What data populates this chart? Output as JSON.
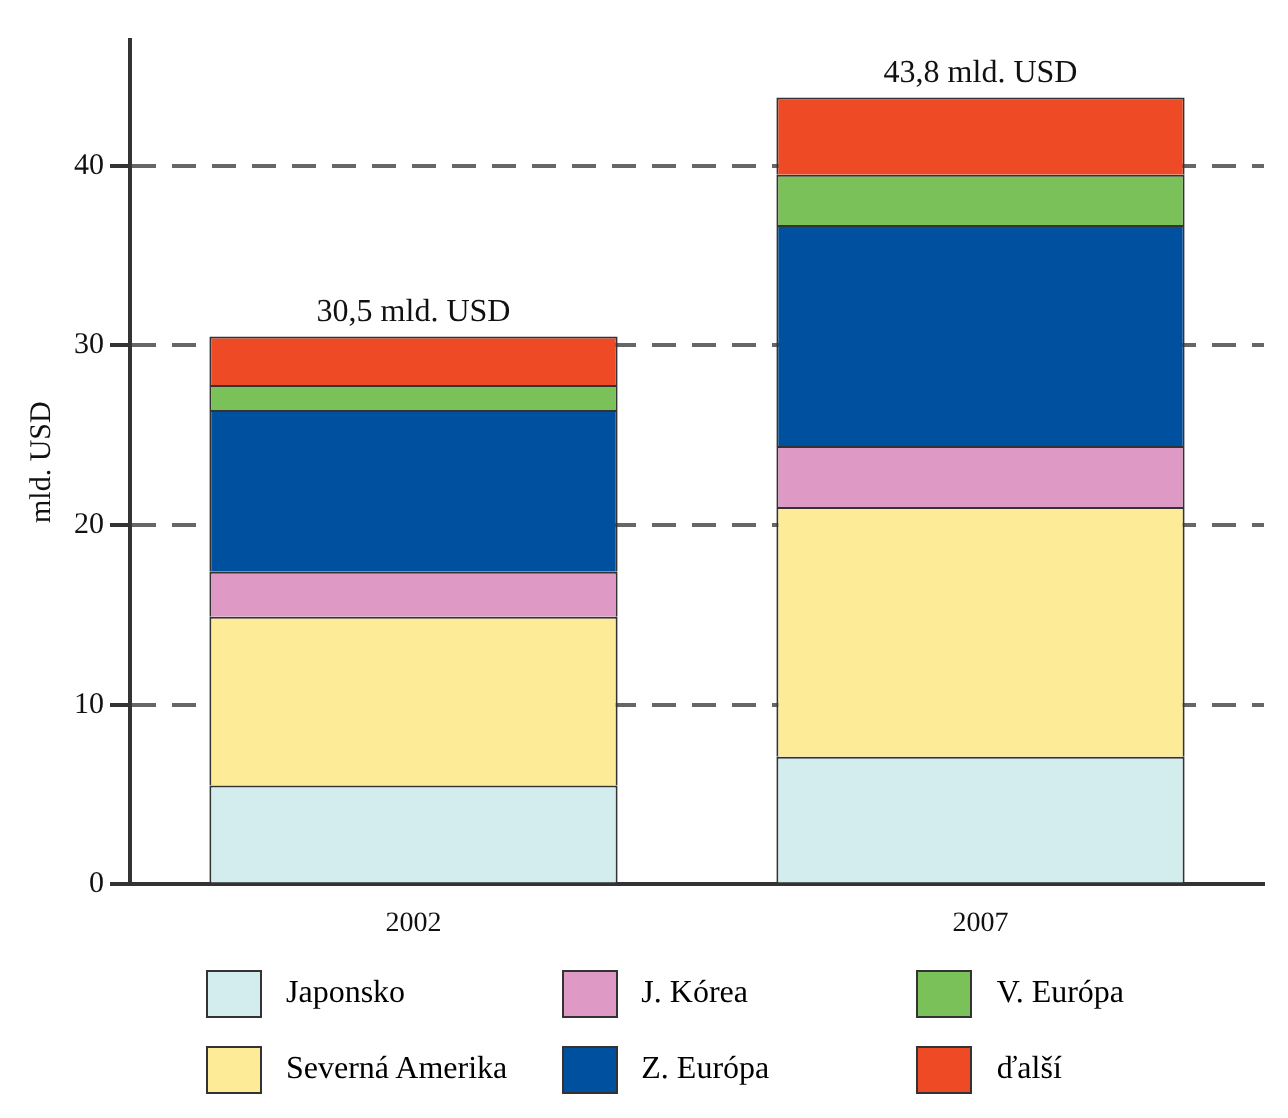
{
  "chart_data": {
    "type": "bar",
    "stacked": true,
    "ylabel": "mld. USD",
    "categories": [
      "2002",
      "2007"
    ],
    "series": [
      {
        "name": "Japonsko",
        "color": "#d3ecee",
        "values": [
          5.5,
          7.1
        ]
      },
      {
        "name": "Severná Amerika",
        "color": "#fdeb97",
        "values": [
          9.4,
          13.9
        ]
      },
      {
        "name": "J. Kórea",
        "color": "#de9ac4",
        "values": [
          2.5,
          3.4
        ]
      },
      {
        "name": "Z. Európa",
        "color": "#0050a0",
        "values": [
          9.0,
          12.3
        ]
      },
      {
        "name": "V. Európa",
        "color": "#7bc15a",
        "values": [
          1.4,
          2.8
        ]
      },
      {
        "name": "ďalší",
        "color": "#ee4a25",
        "values": [
          2.7,
          4.3
        ]
      }
    ],
    "totals": [
      "30,5 mld. USD",
      "43,8 mld. USD"
    ],
    "ylim": [
      0,
      47
    ],
    "yticks": [
      0,
      10,
      20,
      30,
      40
    ],
    "grid": "y",
    "legend": "bottom"
  }
}
